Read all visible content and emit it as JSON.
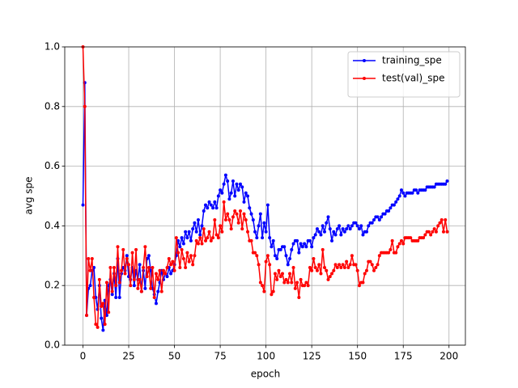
{
  "chart_data": {
    "type": "line",
    "x_label": "epoch",
    "y_label": "avg spe",
    "x": [
      0,
      1,
      2,
      3,
      4,
      5,
      6,
      7,
      8,
      9,
      10,
      11,
      12,
      13,
      14,
      15,
      16,
      17,
      18,
      19,
      20,
      21,
      22,
      23,
      24,
      25,
      26,
      27,
      28,
      29,
      30,
      31,
      32,
      33,
      34,
      35,
      36,
      37,
      38,
      39,
      40,
      41,
      42,
      43,
      44,
      45,
      46,
      47,
      48,
      49,
      50,
      51,
      52,
      53,
      54,
      55,
      56,
      57,
      58,
      59,
      60,
      61,
      62,
      63,
      64,
      65,
      66,
      67,
      68,
      69,
      70,
      71,
      72,
      73,
      74,
      75,
      76,
      77,
      78,
      79,
      80,
      81,
      82,
      83,
      84,
      85,
      86,
      87,
      88,
      89,
      90,
      91,
      92,
      93,
      94,
      95,
      96,
      97,
      98,
      99,
      100,
      101,
      102,
      103,
      104,
      105,
      106,
      107,
      108,
      109,
      110,
      111,
      112,
      113,
      114,
      115,
      116,
      117,
      118,
      119,
      120,
      121,
      122,
      123,
      124,
      125,
      126,
      127,
      128,
      129,
      130,
      131,
      132,
      133,
      134,
      135,
      136,
      137,
      138,
      139,
      140,
      141,
      142,
      143,
      144,
      145,
      146,
      147,
      148,
      149,
      150,
      151,
      152,
      153,
      154,
      155,
      156,
      157,
      158,
      159,
      160,
      161,
      162,
      163,
      164,
      165,
      166,
      167,
      168,
      169,
      170,
      171,
      172,
      173,
      174,
      175,
      176,
      177,
      178,
      179,
      180,
      181,
      182,
      183,
      184,
      185,
      186,
      187,
      188,
      189,
      190,
      191,
      192,
      193,
      194,
      195,
      196,
      197,
      198,
      199
    ],
    "series": [
      {
        "name": "training_spe",
        "color": "#0000ff",
        "values": [
          0.47,
          0.88,
          0.1,
          0.19,
          0.2,
          0.25,
          0.26,
          0.16,
          0.12,
          0.2,
          0.09,
          0.05,
          0.15,
          0.1,
          0.2,
          0.22,
          0.17,
          0.24,
          0.16,
          0.29,
          0.16,
          0.24,
          0.26,
          0.25,
          0.3,
          0.23,
          0.22,
          0.26,
          0.2,
          0.25,
          0.22,
          0.27,
          0.18,
          0.25,
          0.19,
          0.29,
          0.3,
          0.25,
          0.19,
          0.17,
          0.14,
          0.18,
          0.21,
          0.25,
          0.22,
          0.24,
          0.23,
          0.26,
          0.24,
          0.25,
          0.27,
          0.3,
          0.35,
          0.33,
          0.36,
          0.34,
          0.38,
          0.36,
          0.38,
          0.35,
          0.39,
          0.41,
          0.38,
          0.42,
          0.37,
          0.4,
          0.45,
          0.47,
          0.46,
          0.48,
          0.47,
          0.46,
          0.48,
          0.46,
          0.5,
          0.52,
          0.51,
          0.54,
          0.57,
          0.55,
          0.49,
          0.51,
          0.55,
          0.5,
          0.54,
          0.52,
          0.54,
          0.53,
          0.48,
          0.51,
          0.5,
          0.46,
          0.44,
          0.42,
          0.38,
          0.36,
          0.4,
          0.44,
          0.36,
          0.41,
          0.38,
          0.47,
          0.36,
          0.33,
          0.35,
          0.3,
          0.29,
          0.32,
          0.32,
          0.33,
          0.33,
          0.3,
          0.27,
          0.29,
          0.32,
          0.34,
          0.35,
          0.35,
          0.31,
          0.34,
          0.33,
          0.34,
          0.33,
          0.35,
          0.35,
          0.33,
          0.36,
          0.37,
          0.39,
          0.38,
          0.37,
          0.4,
          0.38,
          0.41,
          0.43,
          0.39,
          0.35,
          0.38,
          0.37,
          0.39,
          0.4,
          0.37,
          0.39,
          0.38,
          0.39,
          0.4,
          0.39,
          0.4,
          0.41,
          0.41,
          0.4,
          0.39,
          0.4,
          0.37,
          0.38,
          0.38,
          0.4,
          0.41,
          0.41,
          0.42,
          0.43,
          0.43,
          0.42,
          0.43,
          0.44,
          0.44,
          0.45,
          0.45,
          0.46,
          0.47,
          0.47,
          0.48,
          0.49,
          0.5,
          0.52,
          0.51,
          0.5,
          0.51,
          0.51,
          0.51,
          0.51,
          0.52,
          0.52,
          0.51,
          0.52,
          0.52,
          0.52,
          0.52,
          0.53,
          0.53,
          0.53,
          0.53,
          0.53,
          0.54,
          0.54,
          0.54,
          0.54,
          0.54,
          0.54,
          0.55
        ]
      },
      {
        "name": "test(val)_spe",
        "color": "#ff0000",
        "values": [
          1.0,
          0.8,
          0.1,
          0.29,
          0.25,
          0.29,
          0.16,
          0.07,
          0.06,
          0.22,
          0.13,
          0.14,
          0.07,
          0.21,
          0.11,
          0.26,
          0.18,
          0.26,
          0.2,
          0.33,
          0.21,
          0.25,
          0.32,
          0.24,
          0.29,
          0.27,
          0.2,
          0.31,
          0.22,
          0.32,
          0.19,
          0.22,
          0.18,
          0.26,
          0.33,
          0.23,
          0.26,
          0.19,
          0.26,
          0.16,
          0.24,
          0.22,
          0.25,
          0.18,
          0.25,
          0.24,
          0.26,
          0.29,
          0.27,
          0.28,
          0.25,
          0.36,
          0.31,
          0.26,
          0.32,
          0.29,
          0.26,
          0.31,
          0.28,
          0.3,
          0.27,
          0.3,
          0.35,
          0.34,
          0.36,
          0.34,
          0.39,
          0.35,
          0.36,
          0.38,
          0.35,
          0.36,
          0.42,
          0.37,
          0.36,
          0.4,
          0.38,
          0.48,
          0.42,
          0.44,
          0.42,
          0.39,
          0.43,
          0.45,
          0.44,
          0.41,
          0.45,
          0.39,
          0.44,
          0.42,
          0.38,
          0.35,
          0.35,
          0.31,
          0.31,
          0.3,
          0.27,
          0.21,
          0.2,
          0.18,
          0.28,
          0.3,
          0.27,
          0.17,
          0.18,
          0.24,
          0.22,
          0.25,
          0.23,
          0.24,
          0.21,
          0.22,
          0.21,
          0.24,
          0.21,
          0.26,
          0.19,
          0.21,
          0.16,
          0.22,
          0.2,
          0.2,
          0.21,
          0.2,
          0.26,
          0.25,
          0.29,
          0.26,
          0.25,
          0.27,
          0.24,
          0.32,
          0.26,
          0.25,
          0.22,
          0.23,
          0.24,
          0.25,
          0.27,
          0.26,
          0.27,
          0.26,
          0.27,
          0.26,
          0.28,
          0.26,
          0.27,
          0.3,
          0.27,
          0.27,
          0.25,
          0.2,
          0.21,
          0.21,
          0.24,
          0.25,
          0.28,
          0.28,
          0.27,
          0.25,
          0.26,
          0.27,
          0.3,
          0.31,
          0.31,
          0.31,
          0.31,
          0.31,
          0.32,
          0.35,
          0.31,
          0.31,
          0.33,
          0.34,
          0.35,
          0.34,
          0.36,
          0.36,
          0.36,
          0.36,
          0.35,
          0.35,
          0.35,
          0.35,
          0.36,
          0.36,
          0.36,
          0.37,
          0.38,
          0.38,
          0.37,
          0.38,
          0.39,
          0.38,
          0.4,
          0.41,
          0.42,
          0.38,
          0.42,
          0.38
        ]
      }
    ],
    "xlim": [
      -9.95,
      208.95
    ],
    "xticks": [
      0,
      25,
      50,
      75,
      100,
      125,
      150,
      175,
      200
    ],
    "ylim": [
      0,
      1
    ],
    "yticks": [
      {
        "value": 0,
        "label": "0.0"
      },
      {
        "value": 0.2,
        "label": "0.2"
      },
      {
        "value": 0.4,
        "label": "0.4"
      },
      {
        "value": 0.6,
        "label": "0.6"
      },
      {
        "value": 0.8,
        "label": "0.8"
      },
      {
        "value": 1,
        "label": "1.0"
      }
    ],
    "grid": true,
    "legend": "upper right"
  }
}
